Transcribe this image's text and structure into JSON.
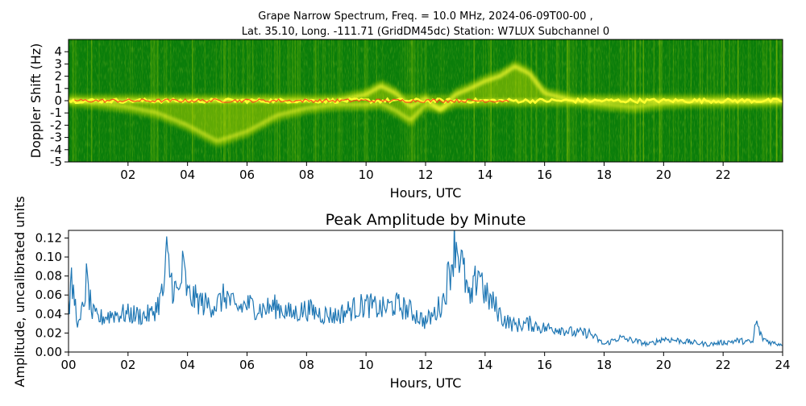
{
  "chart_data": [
    {
      "type": "heatmap",
      "title_line1": "Grape Narrow Spectrum, Freq. = 10.0 MHz, 2024-06-09T00-00 ,",
      "title_line2": "Lat.  35.10, Long. -111.71 (GridDM45dc) Station: W7LUX Subchannel 0",
      "xlabel": "Hours, UTC",
      "ylabel": "Doppler Shift (Hz)",
      "xlim": [
        0,
        24
      ],
      "ylim": [
        -5,
        5
      ],
      "xticks": [
        2,
        4,
        6,
        8,
        10,
        12,
        14,
        16,
        18,
        20,
        22
      ],
      "xtick_labels": [
        "02",
        "04",
        "06",
        "08",
        "10",
        "12",
        "14",
        "16",
        "18",
        "20",
        "22"
      ],
      "yticks": [
        4,
        3,
        2,
        1,
        0,
        -1,
        -2,
        -3,
        -4,
        -5
      ],
      "ytick_labels": [
        "4",
        "3",
        "2",
        "1",
        "0",
        "-1",
        "-2",
        "-3",
        "-4",
        "-5"
      ],
      "colors": {
        "background": "#0a7d0a",
        "mid": "#c8e000",
        "high": "#ffff30",
        "peak": "#ff3b1a"
      },
      "trace": {
        "hours": [
          0,
          1,
          2,
          3,
          4,
          5,
          6,
          7,
          8,
          9,
          10,
          10.5,
          11,
          11.5,
          12,
          12.5,
          13,
          13.5,
          14,
          14.5,
          15,
          15.5,
          16,
          17,
          18,
          19,
          20,
          21,
          22,
          23,
          24
        ],
        "center_hz": [
          0,
          0,
          0,
          0,
          0,
          0,
          0,
          0,
          0,
          0,
          0.5,
          1.2,
          0.6,
          -0.5,
          0.2,
          -0.8,
          0.5,
          1.0,
          1.6,
          2.0,
          2.8,
          2.2,
          0.6,
          0,
          0,
          0,
          0,
          0,
          0,
          0,
          0
        ],
        "low_hz": [
          0,
          -0.2,
          -0.5,
          -1.0,
          -2.0,
          -3.3,
          -2.5,
          -1.2,
          -0.6,
          -0.3,
          -0.3,
          -0.2,
          -0.8,
          -1.6,
          -0.3,
          -0.6,
          -0.1,
          -0.1,
          0,
          0,
          0,
          0,
          0,
          0,
          -0.3,
          -0.5,
          -0.2,
          -0.1,
          -0.1,
          -0.1,
          0
        ]
      }
    },
    {
      "type": "line",
      "title": "Peak Amplitude by Minute",
      "xlabel": "Hours, UTC",
      "ylabel": "Amplitude, uncalibrated units",
      "xlim": [
        0,
        24
      ],
      "ylim": [
        0,
        0.128
      ],
      "xticks": [
        0,
        2,
        4,
        6,
        8,
        10,
        12,
        14,
        16,
        18,
        20,
        22,
        24
      ],
      "xtick_labels": [
        "00",
        "02",
        "04",
        "06",
        "08",
        "10",
        "12",
        "14",
        "16",
        "18",
        "20",
        "22",
        "24"
      ],
      "yticks": [
        0,
        0.02,
        0.04,
        0.06,
        0.08,
        0.1,
        0.12
      ],
      "ytick_labels": [
        "0.00",
        "0.02",
        "0.04",
        "0.06",
        "0.08",
        "0.10",
        "0.12"
      ],
      "color": "#1f77b4",
      "envelope": {
        "x": [
          0,
          0.1,
          0.2,
          0.35,
          0.5,
          0.6,
          0.8,
          1.0,
          1.5,
          2.0,
          2.5,
          2.8,
          3.0,
          3.2,
          3.3,
          3.5,
          3.7,
          3.85,
          4.0,
          4.3,
          4.6,
          5.0,
          5.3,
          5.6,
          6.0,
          6.5,
          7.0,
          7.5,
          8.0,
          8.5,
          9.0,
          9.5,
          10.0,
          10.5,
          11.0,
          11.5,
          12.0,
          12.3,
          12.6,
          12.9,
          13.0,
          13.2,
          13.5,
          13.8,
          14.0,
          14.3,
          14.6,
          15.0,
          15.5,
          16.0,
          16.5,
          17.0,
          17.5,
          18.0,
          18.5,
          19.0,
          19.5,
          20.0,
          20.5,
          21.0,
          21.5,
          22.0,
          22.5,
          23.0,
          23.1,
          23.3,
          23.6,
          24.0
        ],
        "y": [
          0.045,
          0.07,
          0.055,
          0.025,
          0.05,
          0.075,
          0.04,
          0.035,
          0.04,
          0.04,
          0.038,
          0.04,
          0.05,
          0.065,
          0.1,
          0.07,
          0.06,
          0.09,
          0.06,
          0.055,
          0.05,
          0.05,
          0.06,
          0.045,
          0.05,
          0.045,
          0.048,
          0.04,
          0.045,
          0.04,
          0.038,
          0.045,
          0.05,
          0.045,
          0.05,
          0.043,
          0.032,
          0.04,
          0.055,
          0.1,
          0.12,
          0.095,
          0.05,
          0.09,
          0.06,
          0.05,
          0.035,
          0.028,
          0.03,
          0.025,
          0.025,
          0.02,
          0.02,
          0.008,
          0.015,
          0.012,
          0.008,
          0.014,
          0.012,
          0.01,
          0.008,
          0.01,
          0.012,
          0.01,
          0.032,
          0.015,
          0.01,
          0.008
        ]
      },
      "points_per_hour": 30
    }
  ]
}
